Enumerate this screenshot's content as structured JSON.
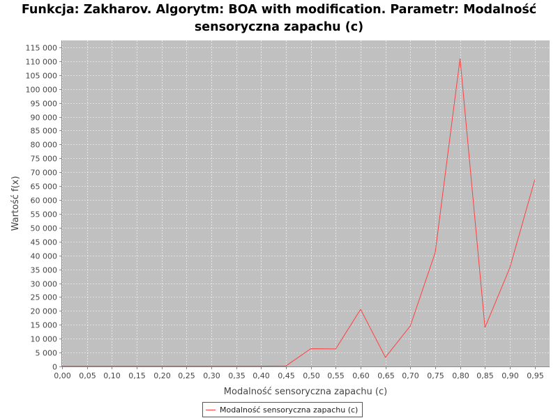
{
  "chart_data": {
    "type": "line",
    "title": [
      "Funkcja: Zakharov. Algorytm: BOA with modification. Parametr: Modalność",
      "sensoryczna zapachu (c)"
    ],
    "xlabel": "Modalność sensoryczna zapachu (c)",
    "ylabel": "Wartość f(x)",
    "xlim": [
      0.0,
      0.98
    ],
    "ylim": [
      0,
      117500
    ],
    "x_ticks": [
      "0,00",
      "0,05",
      "0,10",
      "0,15",
      "0,20",
      "0,25",
      "0,30",
      "0,35",
      "0,40",
      "0,45",
      "0,50",
      "0,55",
      "0,60",
      "0,65",
      "0,70",
      "0,75",
      "0,80",
      "0,85",
      "0,90",
      "0,95"
    ],
    "x_tick_values": [
      0.0,
      0.05,
      0.1,
      0.15,
      0.2,
      0.25,
      0.3,
      0.35,
      0.4,
      0.45,
      0.5,
      0.55,
      0.6,
      0.65,
      0.7,
      0.75,
      0.8,
      0.85,
      0.9,
      0.95
    ],
    "y_ticks": [
      "0",
      "5 000",
      "10 000",
      "15 000",
      "20 000",
      "25 000",
      "30 000",
      "35 000",
      "40 000",
      "45 000",
      "50 000",
      "55 000",
      "60 000",
      "65 000",
      "70 000",
      "75 000",
      "80 000",
      "85 000",
      "90 000",
      "95 000",
      "100 000",
      "105 000",
      "110 000",
      "115 000"
    ],
    "y_tick_values": [
      0,
      5000,
      10000,
      15000,
      20000,
      25000,
      30000,
      35000,
      40000,
      45000,
      50000,
      55000,
      60000,
      65000,
      70000,
      75000,
      80000,
      85000,
      90000,
      95000,
      100000,
      105000,
      110000,
      115000
    ],
    "grid": true,
    "legend_position": "bottom-center",
    "series": [
      {
        "name": "Modalność sensoryczna zapachu (c)",
        "color": "#ff4040",
        "x": [
          0.0,
          0.05,
          0.1,
          0.15,
          0.2,
          0.25,
          0.3,
          0.35,
          0.4,
          0.45,
          0.5,
          0.55,
          0.6,
          0.65,
          0.7,
          0.75,
          0.8,
          0.85,
          0.9,
          0.95
        ],
        "y": [
          100,
          100,
          100,
          100,
          100,
          100,
          100,
          100,
          100,
          200,
          6400,
          6300,
          20600,
          3300,
          14600,
          41000,
          111000,
          14000,
          35500,
          67200
        ]
      }
    ]
  },
  "colors": {
    "plot_background": "#c0c0c0",
    "grid": "#ffffff",
    "series": "#ff4040"
  }
}
